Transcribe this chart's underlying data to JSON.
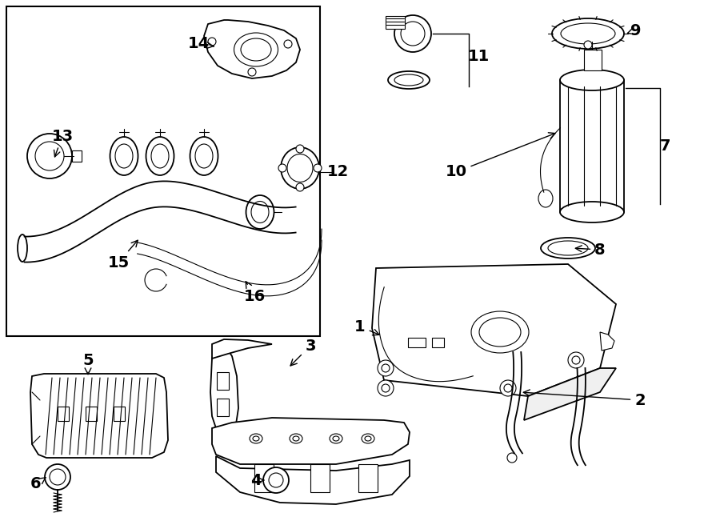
{
  "bg_color": "#ffffff",
  "line_color": "#000000",
  "lw": 1.3,
  "lw_thin": 0.8,
  "label_fs": 14
}
